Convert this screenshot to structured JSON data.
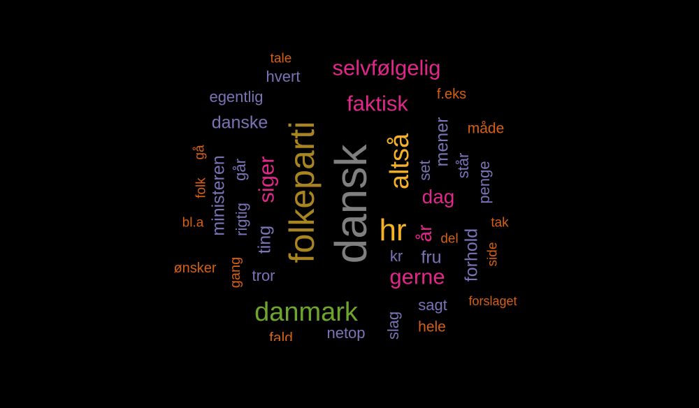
{
  "background": "#000000",
  "palette": {
    "gray": "#7f7f7f",
    "olive": "#a88521",
    "gold": "#f3b12a",
    "green": "#6ea62b",
    "pink": "#e0278a",
    "purple": "#7a73b6",
    "orange": "#d65f12"
  },
  "words": [
    {
      "text": "dansk",
      "color": "#7f7f7f",
      "orientation": "vertical"
    },
    {
      "text": "folkeparti",
      "color": "#a88521",
      "orientation": "vertical"
    },
    {
      "text": "hr",
      "color": "#f3b12a",
      "orientation": "horizontal"
    },
    {
      "text": "danmark",
      "color": "#6ea62b",
      "orientation": "horizontal"
    },
    {
      "text": "altså",
      "color": "#f3b12a",
      "orientation": "vertical"
    },
    {
      "text": "selvfølgelig",
      "color": "#e0278a",
      "orientation": "horizontal"
    },
    {
      "text": "faktisk",
      "color": "#e0278a",
      "orientation": "horizontal"
    },
    {
      "text": "gerne",
      "color": "#e0278a",
      "orientation": "horizontal"
    },
    {
      "text": "siger",
      "color": "#e0278a",
      "orientation": "vertical"
    },
    {
      "text": "dag",
      "color": "#e0278a",
      "orientation": "horizontal"
    },
    {
      "text": "år",
      "color": "#e0278a",
      "orientation": "vertical"
    },
    {
      "text": "danske",
      "color": "#7a73b6",
      "orientation": "horizontal"
    },
    {
      "text": "mener",
      "color": "#7a73b6",
      "orientation": "vertical"
    },
    {
      "text": "ministeren",
      "color": "#7a73b6",
      "orientation": "vertical"
    },
    {
      "text": "fru",
      "color": "#7a73b6",
      "orientation": "horizontal"
    },
    {
      "text": "forhold",
      "color": "#7a73b6",
      "orientation": "vertical"
    },
    {
      "text": "ting",
      "color": "#7a73b6",
      "orientation": "vertical"
    },
    {
      "text": "egentlig",
      "color": "#7a73b6",
      "orientation": "horizontal"
    },
    {
      "text": "tror",
      "color": "#7a73b6",
      "orientation": "horizontal"
    },
    {
      "text": "sagt",
      "color": "#7a73b6",
      "orientation": "horizontal"
    },
    {
      "text": "netop",
      "color": "#7a73b6",
      "orientation": "horizontal"
    },
    {
      "text": "hvert",
      "color": "#7a73b6",
      "orientation": "horizontal"
    },
    {
      "text": "går",
      "color": "#7a73b6",
      "orientation": "vertical"
    },
    {
      "text": "rigtig",
      "color": "#7a73b6",
      "orientation": "vertical"
    },
    {
      "text": "set",
      "color": "#7a73b6",
      "orientation": "vertical"
    },
    {
      "text": "står",
      "color": "#7a73b6",
      "orientation": "vertical"
    },
    {
      "text": "penge",
      "color": "#7a73b6",
      "orientation": "vertical"
    },
    {
      "text": "slag",
      "color": "#7a73b6",
      "orientation": "vertical"
    },
    {
      "text": "kr",
      "color": "#7a73b6",
      "orientation": "horizontal"
    },
    {
      "text": "måde",
      "color": "#d65f12",
      "orientation": "horizontal"
    },
    {
      "text": "f.eks",
      "color": "#d65f12",
      "orientation": "horizontal"
    },
    {
      "text": "tale",
      "color": "#d65f12",
      "orientation": "horizontal"
    },
    {
      "text": "ønsker",
      "color": "#d65f12",
      "orientation": "horizontal"
    },
    {
      "text": "gang",
      "color": "#d65f12",
      "orientation": "vertical"
    },
    {
      "text": "bl.a",
      "color": "#d65f12",
      "orientation": "horizontal"
    },
    {
      "text": "folk",
      "color": "#d65f12",
      "orientation": "vertical"
    },
    {
      "text": "gå",
      "color": "#d65f12",
      "orientation": "vertical"
    },
    {
      "text": "tak",
      "color": "#d65f12",
      "orientation": "horizontal"
    },
    {
      "text": "del",
      "color": "#d65f12",
      "orientation": "horizontal"
    },
    {
      "text": "side",
      "color": "#d65f12",
      "orientation": "vertical"
    },
    {
      "text": "forslaget",
      "color": "#d65f12",
      "orientation": "horizontal"
    },
    {
      "text": "hele",
      "color": "#d65f12",
      "orientation": "horizontal"
    },
    {
      "text": "fald",
      "color": "#d65f12",
      "orientation": "horizontal"
    }
  ]
}
